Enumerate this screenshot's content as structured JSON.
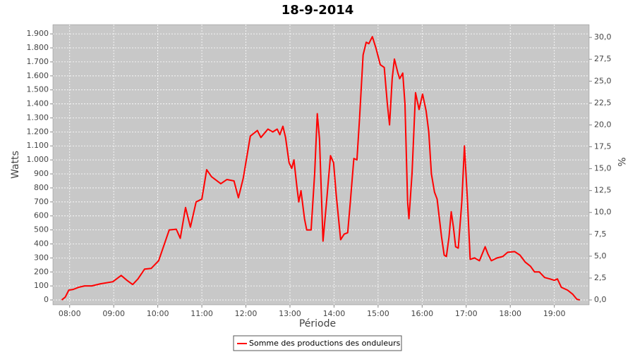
{
  "chart_data": {
    "type": "line",
    "title": "18-9-2014",
    "x_label": "Période",
    "y_label": "Watts",
    "y2_label": "%",
    "grid": true,
    "legend_position": "bottom",
    "xlim": [
      7.62,
      19.79
    ],
    "xticks": [
      {
        "value": 8,
        "label": "08:00"
      },
      {
        "value": 9,
        "label": "09:00"
      },
      {
        "value": 10,
        "label": "10:00"
      },
      {
        "value": 11,
        "label": "11:00"
      },
      {
        "value": 12,
        "label": "12:00"
      },
      {
        "value": 13,
        "label": "13:00"
      },
      {
        "value": 14,
        "label": "14:00"
      },
      {
        "value": 15,
        "label": "15:00"
      },
      {
        "value": 16,
        "label": "16:00"
      },
      {
        "value": 17,
        "label": "17:00"
      },
      {
        "value": 18,
        "label": "18:00"
      },
      {
        "value": 19,
        "label": "19:00"
      }
    ],
    "ylim": [
      -35,
      1966
    ],
    "yticks": [
      0,
      100,
      200,
      300,
      400,
      500,
      600,
      700,
      800,
      900,
      {
        "value": 1000,
        "label": "1.000"
      },
      {
        "value": 1100,
        "label": "1.100"
      },
      {
        "value": 1200,
        "label": "1.200"
      },
      {
        "value": 1300,
        "label": "1.300"
      },
      {
        "value": 1400,
        "label": "1.400"
      },
      {
        "value": 1500,
        "label": "1.500"
      },
      {
        "value": 1600,
        "label": "1.600"
      },
      {
        "value": 1700,
        "label": "1.700"
      },
      {
        "value": 1800,
        "label": "1.800"
      },
      {
        "value": 1900,
        "label": "1.900"
      }
    ],
    "y2lim": [
      -0.56,
      31.46
    ],
    "y2ticks": [
      {
        "value": 0,
        "label": "0,0"
      },
      {
        "value": 2.5,
        "label": "2,5"
      },
      {
        "value": 5,
        "label": "5,0"
      },
      {
        "value": 7.5,
        "label": "7,5"
      },
      {
        "value": 10,
        "label": "10,0"
      },
      {
        "value": 12.5,
        "label": "12,5"
      },
      {
        "value": 15,
        "label": "15,0"
      },
      {
        "value": 17.5,
        "label": "17,5"
      },
      {
        "value": 20,
        "label": "20,0"
      },
      {
        "value": 22.5,
        "label": "22,5"
      },
      {
        "value": 25,
        "label": "25,0"
      },
      {
        "value": 27.5,
        "label": "27,5"
      },
      {
        "value": 30,
        "label": "30,0"
      }
    ],
    "series": [
      {
        "name": "Somme des productions des onduleurs",
        "color": "#ff0000",
        "x": [
          7.82,
          7.9,
          7.98,
          8.08,
          8.2,
          8.34,
          8.5,
          8.7,
          8.98,
          9.17,
          9.3,
          9.43,
          9.55,
          9.7,
          9.85,
          10.02,
          10.26,
          10.42,
          10.51,
          10.63,
          10.74,
          10.87,
          11.0,
          11.11,
          11.22,
          11.43,
          11.57,
          11.73,
          11.83,
          11.94,
          12.1,
          12.26,
          12.34,
          12.5,
          12.61,
          12.71,
          12.77,
          12.84,
          12.9,
          12.98,
          13.04,
          13.09,
          13.16,
          13.2,
          13.25,
          13.33,
          13.38,
          13.48,
          13.56,
          13.62,
          13.67,
          13.75,
          13.83,
          13.92,
          13.99,
          14.05,
          14.15,
          14.23,
          14.31,
          14.37,
          14.45,
          14.52,
          14.58,
          14.66,
          14.73,
          14.79,
          14.87,
          14.95,
          15.05,
          15.14,
          15.21,
          15.26,
          15.32,
          15.37,
          15.45,
          15.49,
          15.56,
          15.61,
          15.67,
          15.7,
          15.77,
          15.85,
          15.93,
          16.01,
          16.09,
          16.15,
          16.21,
          16.28,
          16.34,
          16.44,
          16.5,
          16.55,
          16.61,
          16.66,
          16.71,
          16.76,
          16.82,
          16.9,
          16.96,
          17.03,
          17.09,
          17.19,
          17.3,
          17.43,
          17.49,
          17.57,
          17.7,
          17.83,
          17.94,
          18.1,
          18.22,
          18.34,
          18.46,
          18.55,
          18.66,
          18.78,
          18.9,
          19.0,
          19.07,
          19.16,
          19.3,
          19.42,
          19.51,
          19.58
        ],
        "values": [
          0,
          20,
          70,
          75,
          90,
          100,
          100,
          115,
          130,
          175,
          140,
          110,
          150,
          220,
          225,
          280,
          500,
          505,
          440,
          660,
          520,
          700,
          720,
          930,
          880,
          830,
          860,
          850,
          730,
          870,
          1170,
          1210,
          1160,
          1220,
          1200,
          1220,
          1180,
          1240,
          1160,
          980,
          940,
          1000,
          800,
          700,
          780,
          580,
          500,
          500,
          900,
          1330,
          1150,
          420,
          700,
          1030,
          980,
          750,
          430,
          470,
          480,
          700,
          1010,
          1000,
          1300,
          1750,
          1840,
          1830,
          1880,
          1800,
          1680,
          1660,
          1400,
          1250,
          1580,
          1720,
          1620,
          1580,
          1620,
          1400,
          700,
          580,
          900,
          1480,
          1360,
          1470,
          1350,
          1200,
          900,
          770,
          720,
          450,
          320,
          310,
          450,
          630,
          520,
          380,
          370,
          700,
          1100,
          700,
          290,
          300,
          280,
          380,
          330,
          280,
          300,
          310,
          340,
          345,
          320,
          270,
          240,
          200,
          200,
          160,
          150,
          140,
          150,
          90,
          70,
          40,
          5,
          0
        ]
      }
    ]
  }
}
